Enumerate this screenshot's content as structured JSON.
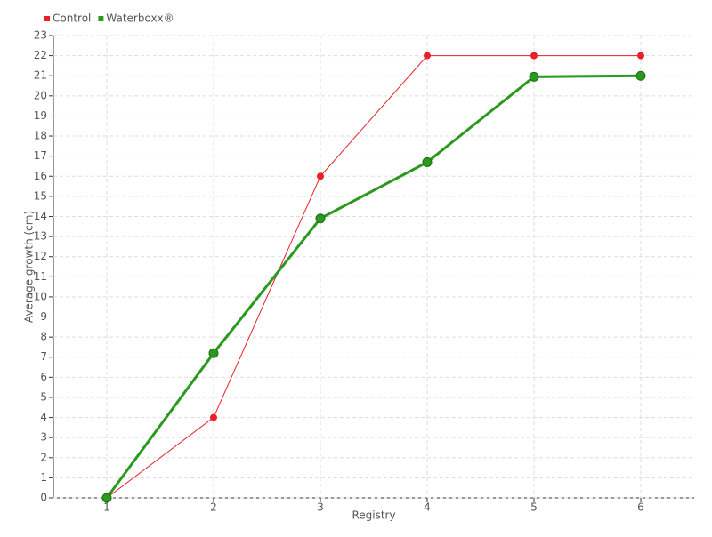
{
  "chart_data": {
    "type": "line",
    "x_label": "Registry",
    "y_label": "Average growth (cm)",
    "x": [
      1,
      2,
      3,
      4,
      5,
      6
    ],
    "xlim": [
      0.5,
      6.5
    ],
    "xticks": [
      1,
      2,
      3,
      4,
      5,
      6
    ],
    "ylim": [
      0,
      23
    ],
    "yticks": [
      0,
      1,
      2,
      3,
      4,
      5,
      6,
      7,
      8,
      9,
      10,
      11,
      12,
      13,
      14,
      15,
      16,
      17,
      18,
      19,
      20,
      21,
      22,
      23
    ],
    "grid": true,
    "legend": "top-left",
    "series": [
      {
        "name": "Control",
        "color": "#e8202a",
        "values": [
          0,
          4,
          16,
          22,
          22,
          22
        ]
      },
      {
        "name": "Waterboxx®",
        "color": "#2a9a1f",
        "values": [
          0,
          7.2,
          13.9,
          16.7,
          20.95,
          21
        ]
      }
    ]
  }
}
